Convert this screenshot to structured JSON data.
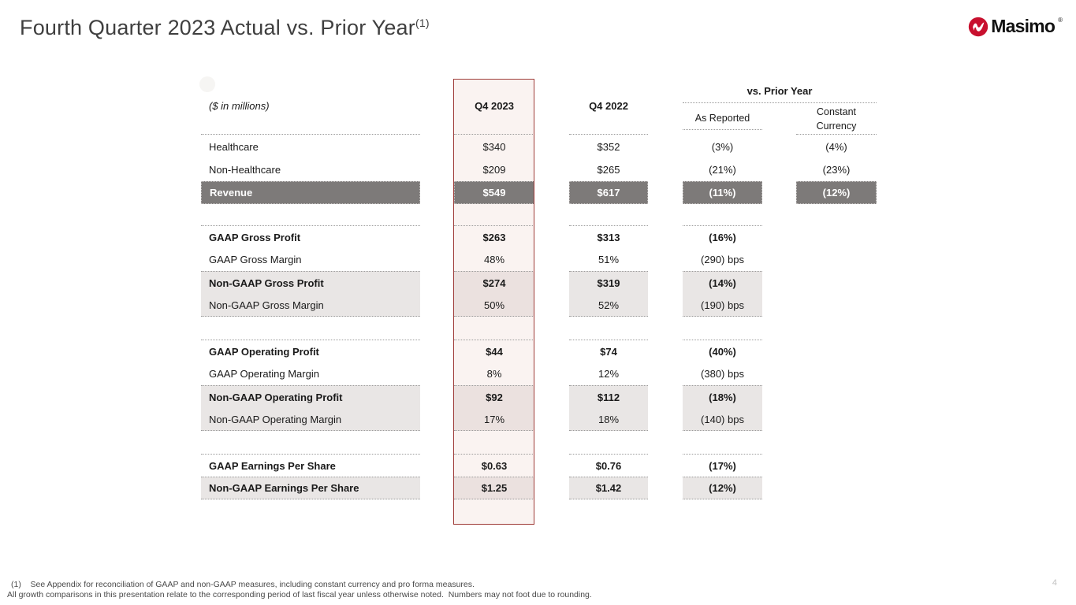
{
  "slide": {
    "title": "Fourth Quarter 2023 Actual vs. Prior Year",
    "title_superscript": "(1)",
    "page_number": "4",
    "footnote_line1": "(1)    See Appendix for reconciliation of GAAP and non-GAAP measures, including constant currency and pro forma measures.",
    "footnote_line2": "All growth comparisons in this presentation relate to the corresponding period of last fiscal year unless otherwise noted.  Numbers may not foot due to rounding."
  },
  "logo": {
    "brand": "Masimo",
    "registered": "®",
    "mark_color": "#c8102e"
  },
  "colors": {
    "highlight_border_red": "#9e3b38",
    "highlight_column_tint": "#faf3f1",
    "dark_row_gray": "#7d7a79",
    "shaded_row_gray": "#e9e6e5",
    "shaded_highlight_tint": "#ebe1df"
  },
  "table": {
    "unit_label": "($ in millions)",
    "columns": {
      "q4_2023": "Q4 2023",
      "q4_2022": "Q4 2022",
      "group": "vs. Prior Year",
      "as_reported": "As Reported",
      "constant_currency": "Constant Currency"
    },
    "rows": [
      {
        "type": "plain",
        "label": "Healthcare",
        "values": {
          "q4_2023": "$340",
          "q4_2022": "$352",
          "as_reported": "(3%)",
          "constant_currency": "(4%)"
        }
      },
      {
        "type": "plain",
        "label": "Non-Healthcare",
        "values": {
          "q4_2023": "$209",
          "q4_2022": "$265",
          "as_reported": "(21%)",
          "constant_currency": "(23%)"
        }
      },
      {
        "type": "dark",
        "bold": true,
        "label": "Revenue",
        "values": {
          "q4_2023": "$549",
          "q4_2022": "$617",
          "as_reported": "(11%)",
          "constant_currency": "(12%)"
        }
      },
      {
        "type": "spacer"
      },
      {
        "type": "plain",
        "bold": true,
        "bt": true,
        "label": "GAAP Gross Profit",
        "values": {
          "q4_2023": "$263",
          "q4_2022": "$313",
          "as_reported": "(16%)"
        }
      },
      {
        "type": "plain",
        "label": "GAAP Gross Margin",
        "values": {
          "q4_2023": "48%",
          "q4_2022": "51%",
          "as_reported": "(290) bps"
        }
      },
      {
        "type": "shaded",
        "bold": true,
        "bt": true,
        "label": "Non-GAAP Gross Profit",
        "values": {
          "q4_2023": "$274",
          "q4_2022": "$319",
          "as_reported": "(14%)"
        }
      },
      {
        "type": "shaded",
        "bb": true,
        "label": "Non-GAAP Gross Margin",
        "values": {
          "q4_2023": "50%",
          "q4_2022": "52%",
          "as_reported": "(190) bps"
        }
      },
      {
        "type": "spacer"
      },
      {
        "type": "plain",
        "bold": true,
        "bt": true,
        "label": "GAAP Operating Profit",
        "values": {
          "q4_2023": "$44",
          "q4_2022": "$74",
          "as_reported": "(40%)"
        }
      },
      {
        "type": "plain",
        "label": "GAAP Operating Margin",
        "values": {
          "q4_2023": "8%",
          "q4_2022": "12%",
          "as_reported": "(380) bps"
        }
      },
      {
        "type": "shaded",
        "bold": true,
        "bt": true,
        "label": "Non-GAAP Operating Profit",
        "values": {
          "q4_2023": "$92",
          "q4_2022": "$112",
          "as_reported": "(18%)"
        }
      },
      {
        "type": "shaded",
        "bb": true,
        "label": "Non-GAAP Operating Margin",
        "values": {
          "q4_2023": "17%",
          "q4_2022": "18%",
          "as_reported": "(140) bps"
        }
      },
      {
        "type": "spacer"
      },
      {
        "type": "plain",
        "bold": true,
        "bt": true,
        "label": "GAAP Earnings Per Share",
        "values": {
          "q4_2023": "$0.63",
          "q4_2022": "$0.76",
          "as_reported": "(17%)"
        }
      },
      {
        "type": "shaded",
        "bold": true,
        "bt": true,
        "bb": true,
        "label": "Non-GAAP Earnings Per Share",
        "values": {
          "q4_2023": "$1.25",
          "q4_2022": "$1.42",
          "as_reported": "(12%)"
        }
      }
    ]
  }
}
